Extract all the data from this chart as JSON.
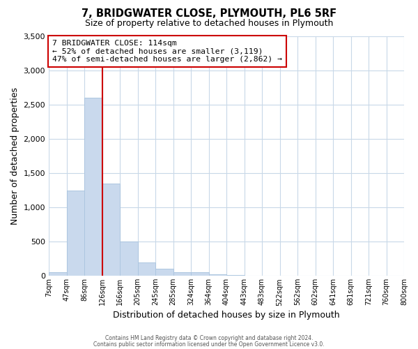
{
  "title": "7, BRIDGWATER CLOSE, PLYMOUTH, PL6 5RF",
  "subtitle": "Size of property relative to detached houses in Plymouth",
  "xlabel": "Distribution of detached houses by size in Plymouth",
  "ylabel": "Number of detached properties",
  "bin_labels": [
    "7sqm",
    "47sqm",
    "86sqm",
    "126sqm",
    "166sqm",
    "205sqm",
    "245sqm",
    "285sqm",
    "324sqm",
    "364sqm",
    "404sqm",
    "443sqm",
    "483sqm",
    "522sqm",
    "562sqm",
    "602sqm",
    "641sqm",
    "681sqm",
    "721sqm",
    "760sqm",
    "800sqm"
  ],
  "bar_values": [
    50,
    1250,
    2600,
    1350,
    500,
    200,
    100,
    50,
    50,
    25,
    10,
    5,
    5,
    0,
    0,
    0,
    0,
    0,
    0,
    0
  ],
  "bar_color": "#c9d9ed",
  "bar_edge_color": "#adc6e0",
  "property_line_x": 3.0,
  "property_line_color": "#cc0000",
  "ylim": [
    0,
    3500
  ],
  "yticks": [
    0,
    500,
    1000,
    1500,
    2000,
    2500,
    3000,
    3500
  ],
  "annotation_box_color": "#ffffff",
  "annotation_box_edge_color": "#cc0000",
  "annotation_line1": "7 BRIDGWATER CLOSE: 114sqm",
  "annotation_line2": "← 52% of detached houses are smaller (3,119)",
  "annotation_line3": "47% of semi-detached houses are larger (2,862) →",
  "footer_line1": "Contains HM Land Registry data © Crown copyright and database right 2024.",
  "footer_line2": "Contains public sector information licensed under the Open Government Licence v3.0.",
  "background_color": "#ffffff",
  "grid_color": "#c8d8e8"
}
